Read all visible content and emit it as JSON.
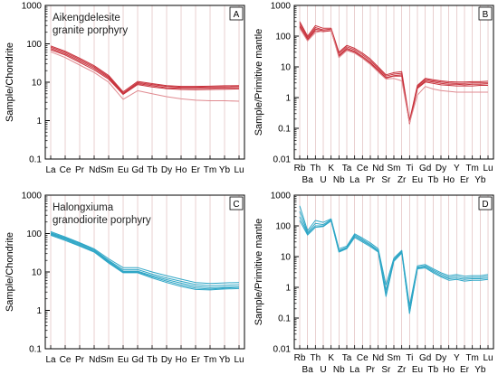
{
  "palette": {
    "red": "#c8323c",
    "red_light": "#e08a90",
    "blue": "#2ea6c6",
    "grid": "#d4a0a0",
    "axis": "#000000"
  },
  "chart_data": [
    {
      "type": "line",
      "panel_label": "A",
      "title": "Aikengdelesite\ngranite porphyry",
      "ylabel": "Sample/Chondrite",
      "y_scale": "log",
      "ylim": [
        0.1,
        1000
      ],
      "y_ticks": [
        "0.1",
        "1",
        "10",
        "100",
        "1000"
      ],
      "categories": [
        "La",
        "Ce",
        "Pr",
        "Nd",
        "Sm",
        "Eu",
        "Gd",
        "Tb",
        "Dy",
        "Ho",
        "Er",
        "Tm",
        "Yb",
        "Lu"
      ],
      "x_tick_labels": [
        "La",
        "Ce",
        "Pr",
        "NdSm",
        "",
        "Eu",
        "Gd",
        "Tb",
        "Dy",
        "Ho",
        "Er",
        "Tm",
        "Yb",
        "Lu"
      ],
      "color": "red",
      "series": [
        {
          "values": [
            88,
            64,
            42,
            27,
            15,
            5.6,
            10.5,
            9.2,
            8.2,
            7.8,
            7.8,
            7.9,
            8.1,
            8.2
          ]
        },
        {
          "values": [
            82,
            60,
            39,
            25,
            14,
            5.2,
            9.8,
            8.7,
            7.8,
            7.4,
            7.4,
            7.5,
            7.6,
            7.7
          ]
        },
        {
          "values": [
            76,
            55,
            36,
            23,
            13,
            5.0,
            9.2,
            8.1,
            7.2,
            6.9,
            6.9,
            7.0,
            7.1,
            7.2
          ]
        },
        {
          "values": [
            70,
            51,
            33,
            21,
            12,
            4.8,
            8.7,
            7.5,
            6.8,
            6.5,
            6.4,
            6.5,
            6.6,
            6.7
          ]
        },
        {
          "values": [
            62,
            44,
            28,
            18,
            10,
            3.6,
            6.0,
            5.0,
            4.2,
            3.7,
            3.4,
            3.3,
            3.3,
            3.2
          ],
          "light": true
        }
      ]
    },
    {
      "type": "line",
      "panel_label": "B",
      "title": "",
      "ylabel": "Sample/Primitive mantle",
      "y_scale": "log",
      "ylim": [
        0.01,
        1000
      ],
      "y_ticks": [
        "0.01",
        "0.1",
        "1",
        "10",
        "100",
        "1000"
      ],
      "categories": [
        "Rb",
        "Ba",
        "Th",
        "U",
        "K",
        "Nb",
        "Ta",
        "La",
        "Ce",
        "Pr",
        "Nd",
        "Sr",
        "Sm",
        "Zr",
        "Ti",
        "Eu",
        "Gd",
        "Tb",
        "Dy",
        "Ho",
        "Y",
        "Er",
        "Tm",
        "Yb",
        "Lu"
      ],
      "x_labels_top": [
        "Rb",
        "Th",
        "K",
        "Ta",
        "Ce",
        "Nd",
        "Sm",
        "Ti",
        "Gd",
        "Dy",
        "Y",
        "Tm",
        "Lu"
      ],
      "x_labels_bottom": [
        "Ba",
        "U",
        "Nb",
        "La",
        "Pr",
        "Sr",
        "Zr",
        "Eu",
        "Tb",
        "Ho",
        "Er",
        "Yb"
      ],
      "color": "red",
      "series": [
        {
          "values": [
            300,
            100,
            220,
            180,
            180,
            30,
            50,
            40,
            28,
            18,
            10,
            5.5,
            6.5,
            7.0,
            0.18,
            2.5,
            4.2,
            3.8,
            3.5,
            3.3,
            3.2,
            3.2,
            3.3,
            3.3,
            3.4
          ]
        },
        {
          "values": [
            260,
            90,
            190,
            160,
            170,
            27,
            45,
            36,
            25,
            16,
            9,
            5.0,
            5.8,
            6.2,
            0.16,
            2.3,
            3.9,
            3.5,
            3.2,
            3.0,
            2.9,
            2.9,
            3.0,
            3.0,
            3.0
          ]
        },
        {
          "values": [
            220,
            80,
            170,
            150,
            160,
            24,
            40,
            32,
            22,
            14,
            8,
            4.5,
            5.2,
            5.5,
            0.14,
            2.1,
            3.5,
            3.2,
            2.9,
            2.7,
            2.7,
            2.6,
            2.7,
            2.7,
            2.8
          ]
        },
        {
          "values": [
            200,
            75,
            150,
            140,
            150,
            22,
            37,
            30,
            20,
            13,
            7.5,
            4.3,
            5.0,
            5.0,
            0.15,
            2.0,
            3.2,
            2.9,
            2.6,
            2.5,
            2.4,
            2.4,
            2.4,
            2.5,
            2.5
          ]
        },
        {
          "values": [
            180,
            70,
            130,
            150,
            160,
            20,
            34,
            28,
            19,
            12,
            6.8,
            4.0,
            4.2,
            3.5,
            0.15,
            1.2,
            2.3,
            1.9,
            1.7,
            1.6,
            1.5,
            1.5,
            1.5,
            1.5,
            1.5
          ],
          "light": true
        }
      ]
    },
    {
      "type": "line",
      "panel_label": "C",
      "title": "Halongxiuma\ngranodiorite porphyry",
      "ylabel": "Sample/Chondrite",
      "y_scale": "log",
      "ylim": [
        0.1,
        1000
      ],
      "y_ticks": [
        "0.1",
        "1",
        "10",
        "100",
        "1000"
      ],
      "categories": [
        "La",
        "Ce",
        "Pr",
        "Nd",
        "Sm",
        "Eu",
        "Gd",
        "Tb",
        "Dy",
        "Ho",
        "Er",
        "Tm",
        "Yb",
        "Lu"
      ],
      "x_tick_labels": [
        "La",
        "Ce",
        "Pr",
        "NdSm",
        "",
        "Eu",
        "Gd",
        "Tb",
        "Dy",
        "Ho",
        "Er",
        "Tm",
        "Yb",
        "Lu"
      ],
      "color": "blue",
      "series": [
        {
          "values": [
            112,
            82,
            58,
            40,
            22,
            13,
            13,
            10,
            8,
            6.5,
            5.3,
            5.0,
            5.2,
            5.3
          ]
        },
        {
          "values": [
            105,
            78,
            55,
            38,
            20,
            11.5,
            11.5,
            8.8,
            7.0,
            5.7,
            4.7,
            4.4,
            4.5,
            4.6
          ]
        },
        {
          "values": [
            100,
            74,
            52,
            36,
            19,
            10.5,
            10.5,
            8.0,
            6.3,
            5.1,
            4.2,
            3.9,
            4.0,
            4.1
          ]
        },
        {
          "values": [
            95,
            70,
            49,
            34,
            18,
            10,
            10,
            7.5,
            5.8,
            4.6,
            3.8,
            3.6,
            3.8,
            4.0
          ]
        },
        {
          "values": [
            90,
            66,
            47,
            33,
            17,
            9.5,
            9.5,
            7.0,
            5.3,
            4.2,
            3.5,
            3.4,
            3.6,
            3.7
          ]
        }
      ]
    },
    {
      "type": "line",
      "panel_label": "D",
      "title": "",
      "ylabel": "Sample/Primitive mantle",
      "y_scale": "log",
      "ylim": [
        0.01,
        1000
      ],
      "y_ticks": [
        "0.01",
        "0.1",
        "1",
        "10",
        "100",
        "1000"
      ],
      "categories": [
        "Rb",
        "Ba",
        "Th",
        "U",
        "K",
        "Nb",
        "Ta",
        "La",
        "Ce",
        "Pr",
        "Nd",
        "Sr",
        "Sm",
        "Zr",
        "Ti",
        "Eu",
        "Gd",
        "Tb",
        "Dy",
        "Ho",
        "Y",
        "Er",
        "Tm",
        "Yb",
        "Lu"
      ],
      "x_labels_top": [
        "Rb",
        "Th",
        "K",
        "Ta",
        "Ce",
        "Nd",
        "Sm",
        "Ti",
        "Gd",
        "Dy",
        "Y",
        "Tm",
        "Lu"
      ],
      "x_labels_bottom": [
        "Ba",
        "U",
        "Nb",
        "La",
        "Pr",
        "Sr",
        "Zr",
        "Eu",
        "Tb",
        "Ho",
        "Er",
        "Yb"
      ],
      "color": "blue",
      "series": [
        {
          "values": [
            450,
            70,
            150,
            130,
            170,
            18,
            22,
            55,
            40,
            28,
            18,
            1.2,
            9.0,
            16,
            0.25,
            5.0,
            5.5,
            4.0,
            3.0,
            2.4,
            2.6,
            2.3,
            2.4,
            2.4,
            2.6
          ]
        },
        {
          "values": [
            300,
            60,
            120,
            110,
            160,
            16,
            20,
            50,
            36,
            25,
            16,
            0.8,
            8.0,
            15,
            0.18,
            4.5,
            5.0,
            3.6,
            2.7,
            2.1,
            2.3,
            2.0,
            2.1,
            2.1,
            2.3
          ]
        },
        {
          "values": [
            200,
            55,
            100,
            100,
            150,
            15,
            19,
            46,
            33,
            23,
            15,
            0.6,
            7.5,
            14,
            0.15,
            4.2,
            4.6,
            3.3,
            2.4,
            1.9,
            2.0,
            1.8,
            1.9,
            1.9,
            2.0
          ]
        },
        {
          "values": [
            150,
            50,
            90,
            95,
            145,
            14,
            18,
            42,
            30,
            21,
            14,
            0.5,
            7.0,
            13,
            0.14,
            4.0,
            4.3,
            3.0,
            2.2,
            1.7,
            1.8,
            1.6,
            1.7,
            1.7,
            1.8
          ]
        }
      ]
    }
  ]
}
